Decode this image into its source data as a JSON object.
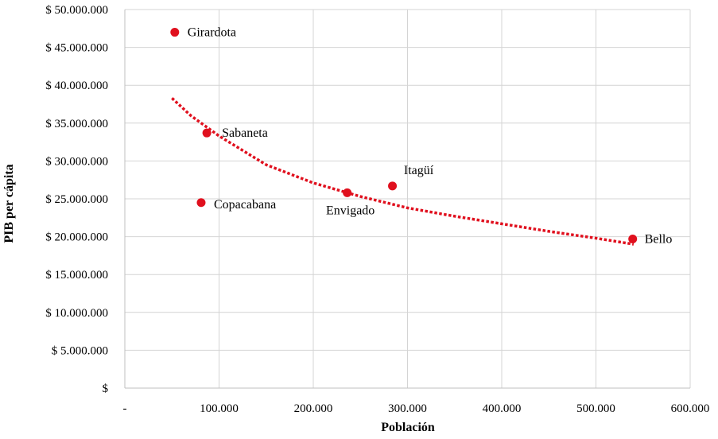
{
  "colors": {
    "point": "#e0101e",
    "trend": "#e0101e",
    "grid": "#d4d4d4"
  },
  "chart_data": {
    "type": "scatter",
    "xlabel": "Población",
    "ylabel": "PIB per cápita",
    "xlim": [
      0,
      600000
    ],
    "ylim": [
      0,
      50000000
    ],
    "grid": true,
    "x_ticks": [
      0,
      100000,
      200000,
      300000,
      400000,
      500000,
      600000
    ],
    "x_tick_labels": [
      "-",
      "100.000",
      "200.000",
      "300.000",
      "400.000",
      "500.000",
      "600.000"
    ],
    "y_ticks": [
      0,
      5000000,
      10000000,
      15000000,
      20000000,
      25000000,
      30000000,
      35000000,
      40000000,
      45000000,
      50000000
    ],
    "y_tick_labels": [
      "$",
      "$ 5.000.000",
      "$ 10.000.000",
      "$ 15.000.000",
      "$ 20.000.000",
      "$ 25.000.000",
      "$ 30.000.000",
      "$ 35.000.000",
      "$ 40.000.000",
      "$ 45.000.000",
      "$ 50.000.000"
    ],
    "points": [
      {
        "label": "Girardota",
        "x": 53000,
        "y": 47000000
      },
      {
        "label": "Sabaneta",
        "x": 87000,
        "y": 33700000
      },
      {
        "label": "Copacabana",
        "x": 81000,
        "y": 24500000
      },
      {
        "label": "Envigado",
        "x": 236000,
        "y": 25800000
      },
      {
        "label": "Itagüí",
        "x": 284000,
        "y": 26700000
      },
      {
        "label": "Bello",
        "x": 539000,
        "y": 19700000
      }
    ],
    "trendline": {
      "type": "power",
      "style": "dotted",
      "x_range": [
        50000,
        540000
      ],
      "points": [
        {
          "x": 50000,
          "y": 38300000
        },
        {
          "x": 70000,
          "y": 36000000
        },
        {
          "x": 100000,
          "y": 33300000
        },
        {
          "x": 150000,
          "y": 29500000
        },
        {
          "x": 200000,
          "y": 27100000
        },
        {
          "x": 250000,
          "y": 25300000
        },
        {
          "x": 300000,
          "y": 23800000
        },
        {
          "x": 350000,
          "y": 22700000
        },
        {
          "x": 400000,
          "y": 21700000
        },
        {
          "x": 450000,
          "y": 20700000
        },
        {
          "x": 500000,
          "y": 19800000
        },
        {
          "x": 540000,
          "y": 19000000
        }
      ]
    }
  }
}
